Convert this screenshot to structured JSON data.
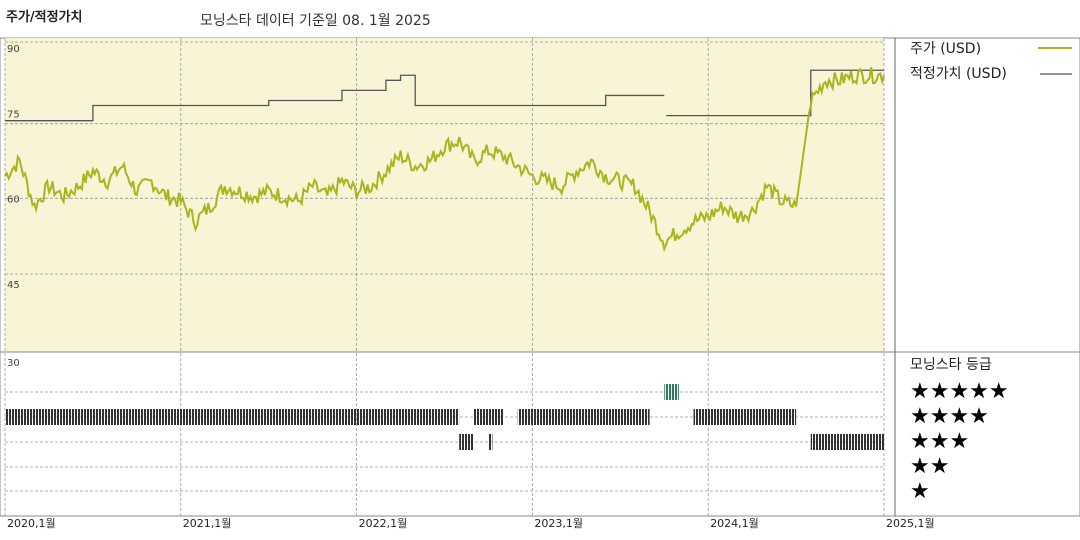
{
  "header": {
    "title": "주가/적정가치",
    "subtitle": "모닝스타 데이터 기준일 08. 1월 2025"
  },
  "legend": {
    "price_label": "주가 (USD)",
    "fair_label": "적정가치 (USD)",
    "rating_title": "모닝스타 등급"
  },
  "colors": {
    "panel_bg": "#f8f4d6",
    "price_line": "#a9b51f",
    "fair_line": "#555555",
    "rating_bar": "#333333",
    "rating_5star": "#2f7a5a",
    "grid": "#999999"
  },
  "chart_data": {
    "type": "line",
    "x_ticks": [
      "2020,1월",
      "2021,1월",
      "2022,1월",
      "2023,1월",
      "2024,1월",
      "2025,1월"
    ],
    "y_ticks": [
      90,
      75,
      60,
      45,
      30
    ],
    "ylim": [
      30,
      90
    ],
    "xlim": [
      "2020-01",
      "2025-01"
    ],
    "grid": true,
    "series": [
      {
        "name": "주가 (USD)",
        "points": [
          [
            "2020-01",
            64
          ],
          [
            "2020-02",
            67
          ],
          [
            "2020-03",
            58
          ],
          [
            "2020-04",
            62
          ],
          [
            "2020-05",
            60
          ],
          [
            "2020-06",
            62
          ],
          [
            "2020-07",
            65
          ],
          [
            "2020-08",
            63
          ],
          [
            "2020-09",
            66
          ],
          [
            "2020-10",
            61
          ],
          [
            "2020-11",
            63
          ],
          [
            "2020-12",
            60
          ],
          [
            "2021-01",
            59
          ],
          [
            "2021-02",
            55
          ],
          [
            "2021-03",
            58
          ],
          [
            "2021-04",
            62
          ],
          [
            "2021-05",
            61
          ],
          [
            "2021-06",
            60
          ],
          [
            "2021-07",
            61
          ],
          [
            "2021-08",
            60
          ],
          [
            "2021-09",
            59
          ],
          [
            "2021-10",
            62
          ],
          [
            "2021-11",
            60
          ],
          [
            "2021-12",
            63
          ],
          [
            "2022-01",
            61
          ],
          [
            "2022-02",
            62
          ],
          [
            "2022-03",
            65
          ],
          [
            "2022-04",
            68
          ],
          [
            "2022-05",
            66
          ],
          [
            "2022-06",
            67
          ],
          [
            "2022-07",
            70
          ],
          [
            "2022-08",
            71
          ],
          [
            "2022-09",
            67
          ],
          [
            "2022-10",
            69
          ],
          [
            "2022-11",
            68
          ],
          [
            "2022-12",
            66
          ],
          [
            "2023-01",
            64
          ],
          [
            "2023-02",
            63
          ],
          [
            "2023-03",
            62
          ],
          [
            "2023-04",
            65
          ],
          [
            "2023-05",
            67
          ],
          [
            "2023-06",
            64
          ],
          [
            "2023-07",
            63
          ],
          [
            "2023-08",
            62
          ],
          [
            "2023-09",
            57
          ],
          [
            "2023-10",
            51
          ],
          [
            "2023-11",
            53
          ],
          [
            "2023-12",
            55
          ],
          [
            "2024-01",
            56
          ],
          [
            "2024-02",
            58
          ],
          [
            "2024-03",
            56
          ],
          [
            "2024-04",
            57
          ],
          [
            "2024-05",
            62
          ],
          [
            "2024-06",
            59
          ],
          [
            "2024-07",
            58
          ],
          [
            "2024-08",
            79
          ],
          [
            "2024-09",
            83
          ],
          [
            "2024-10",
            83
          ],
          [
            "2024-11",
            84
          ],
          [
            "2024-12",
            84
          ],
          [
            "2025-01",
            84
          ]
        ]
      },
      {
        "name": "적정가치 (USD)",
        "points": [
          [
            "2020-01",
            75
          ],
          [
            "2020-07",
            75
          ],
          [
            "2020-07",
            78
          ],
          [
            "2021-07",
            78
          ],
          [
            "2021-07",
            79
          ],
          [
            "2021-12",
            79
          ],
          [
            "2021-12",
            81
          ],
          [
            "2022-03",
            81
          ],
          [
            "2022-03",
            83
          ],
          [
            "2022-04",
            83
          ],
          [
            "2022-04",
            84
          ],
          [
            "2022-05",
            84
          ],
          [
            "2022-05",
            78
          ],
          [
            "2022-12",
            78
          ],
          [
            "2022-12",
            78
          ],
          [
            "2023-06",
            78
          ],
          [
            "2023-06",
            80
          ],
          [
            "2023-10",
            80
          ],
          [
            "2023-10",
            76
          ],
          [
            "2024-08",
            76
          ],
          [
            "2024-08",
            85
          ],
          [
            "2025-01",
            85
          ]
        ],
        "gaps_after": [
          "2023-10"
        ]
      }
    ],
    "morningstar_rating": {
      "labels": [
        "★★★★★",
        "★★★★",
        "★★★",
        "★★",
        "★"
      ],
      "periods": [
        {
          "stars": 4,
          "start": "2020-01",
          "end": "2022-08"
        },
        {
          "stars": 4,
          "start": "2022-09",
          "end": "2022-11"
        },
        {
          "stars": 3,
          "start": "2022-08",
          "end": "2022-09"
        },
        {
          "stars": 3,
          "start": "2022-10",
          "end": "2022-10"
        },
        {
          "stars": 4,
          "start": "2022-12",
          "end": "2023-09"
        },
        {
          "stars": 5,
          "start": "2023-10",
          "end": "2023-11"
        },
        {
          "stars": 4,
          "start": "2023-12",
          "end": "2024-07"
        },
        {
          "stars": 3,
          "start": "2024-08",
          "end": "2025-01"
        }
      ]
    }
  }
}
